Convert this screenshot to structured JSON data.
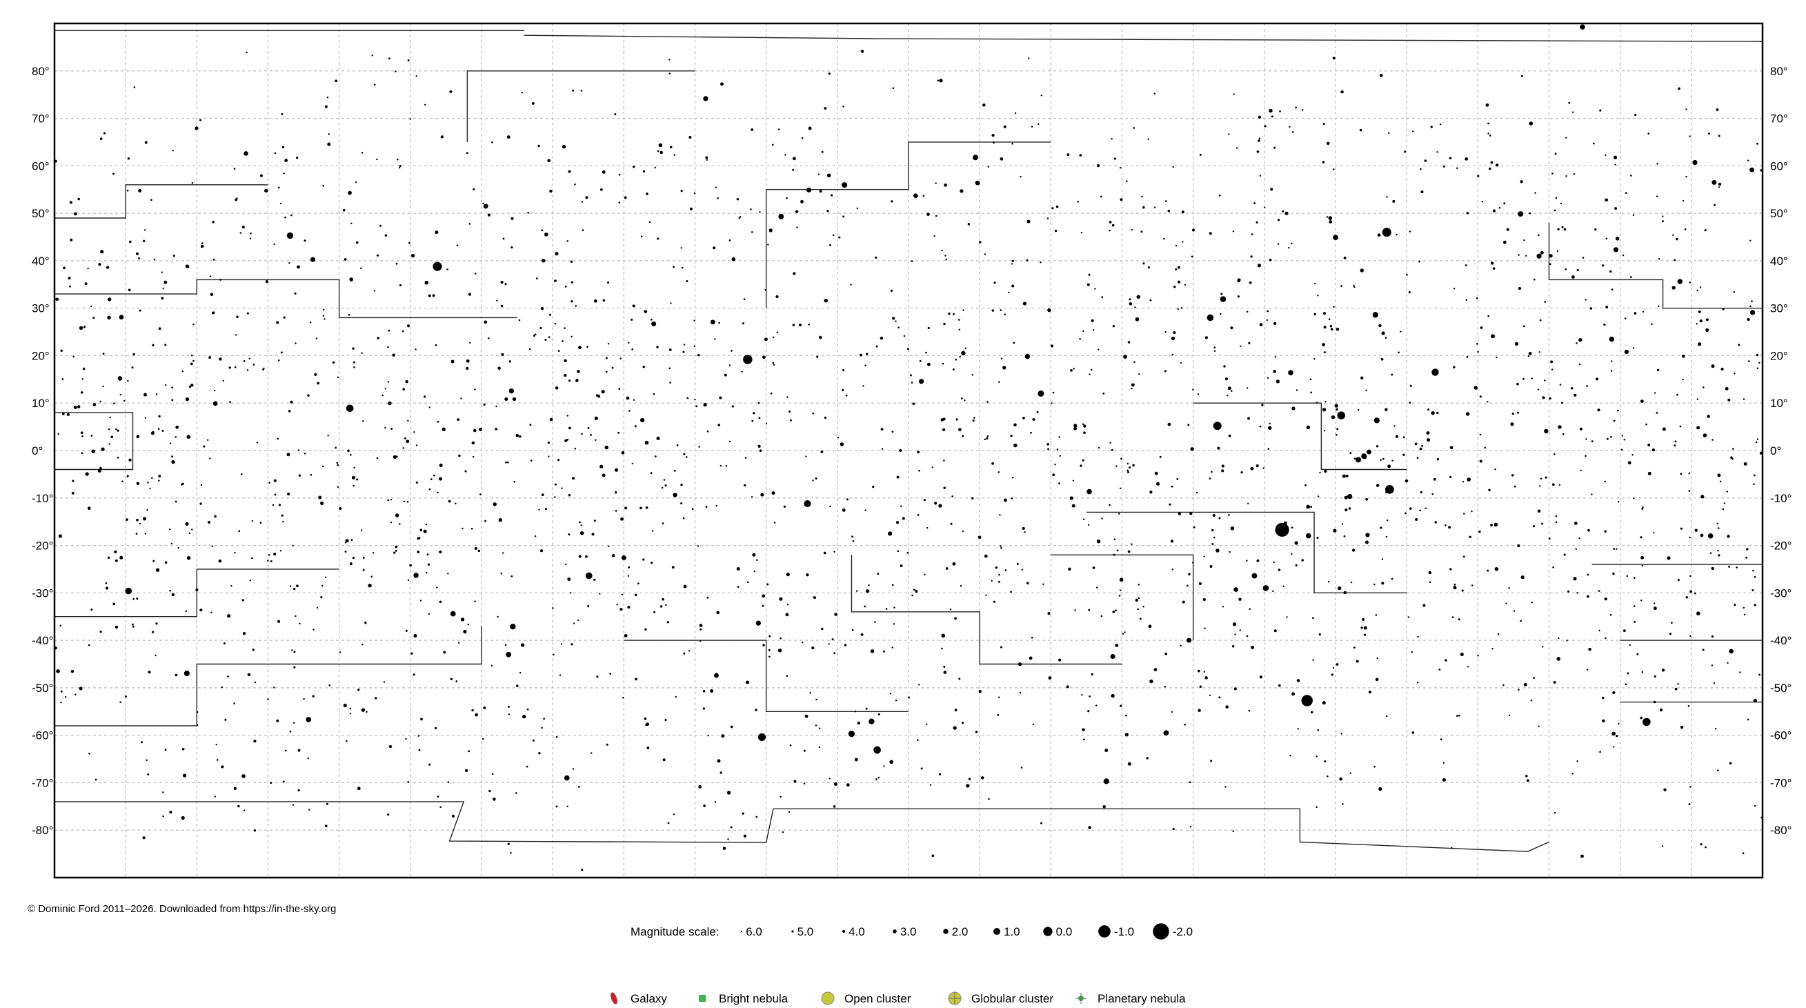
{
  "copyright": "© Dominic Ford 2011–2026. Downloaded from https://in-the-sky.org",
  "map": {
    "projection": "equirectangular",
    "ra_range_hours": [
      24,
      0
    ],
    "dec_range_deg": [
      -90,
      90
    ],
    "grid": true,
    "ra_grid_step_hours": 1,
    "dec_grid_step_deg": 10,
    "dec_labels": [
      "80°",
      "70°",
      "60°",
      "50°",
      "40°",
      "30°",
      "20°",
      "10°",
      "0°",
      "-10°",
      "-20°",
      "-30°",
      "-40°",
      "-50°",
      "-60°",
      "-70°",
      "-80°"
    ],
    "dec_label_values": [
      80,
      70,
      60,
      50,
      40,
      30,
      20,
      10,
      0,
      -10,
      -20,
      -30,
      -40,
      -50,
      -60,
      -70,
      -80
    ],
    "colors": {
      "star": "#000000",
      "grid": "#bbbbbb",
      "boundary": "#222222",
      "galaxy": "#c0282d",
      "bright_nebula": "#3cb44b",
      "cluster": "#c8c83c",
      "planetary_nebula": "#3cb44b"
    },
    "bright_stars": [
      [
        6.75,
        -16.7,
        -1.46
      ],
      [
        6.4,
        -52.7,
        -0.74
      ],
      [
        14.26,
        19.2,
        -0.05
      ],
      [
        18.62,
        38.8,
        0.03
      ],
      [
        5.28,
        46.0,
        0.08
      ],
      [
        5.24,
        -8.2,
        0.13
      ],
      [
        7.66,
        5.2,
        0.34
      ],
      [
        5.92,
        7.4,
        0.5
      ],
      [
        1.63,
        -57.2,
        0.46
      ],
      [
        14.06,
        -60.4,
        0.61
      ],
      [
        19.85,
        8.9,
        0.77
      ],
      [
        12.44,
        -63.1,
        0.77
      ],
      [
        4.6,
        16.5,
        0.85
      ],
      [
        16.49,
        -26.4,
        1.06
      ],
      [
        13.42,
        -11.2,
        0.97
      ],
      [
        7.76,
        28.0,
        1.14
      ],
      [
        22.96,
        -29.6,
        1.16
      ],
      [
        20.69,
        45.3,
        1.25
      ],
      [
        12.8,
        -59.7,
        1.25
      ],
      [
        10.14,
        12.0,
        1.35
      ],
      [
        6.98,
        -29.0,
        1.5
      ],
      [
        7.58,
        31.9,
        1.58
      ],
      [
        17.56,
        -37.1,
        1.62
      ],
      [
        12.52,
        -57.1,
        1.63
      ],
      [
        5.42,
        6.35,
        1.64
      ],
      [
        5.44,
        28.6,
        1.65
      ],
      [
        9.22,
        -69.7,
        1.68
      ],
      [
        5.6,
        -1.2,
        1.69
      ],
      [
        22.14,
        -46.96,
        1.74
      ],
      [
        5.68,
        -1.94,
        1.77
      ],
      [
        12.9,
        55.96,
        1.77
      ],
      [
        11.06,
        61.75,
        1.79
      ],
      [
        3.4,
        49.86,
        1.79
      ],
      [
        7.14,
        -26.4,
        1.84
      ],
      [
        17.62,
        -43.0,
        1.86
      ],
      [
        18.4,
        -34.4,
        1.85
      ],
      [
        8.38,
        -59.5,
        1.86
      ],
      [
        13.79,
        49.3,
        1.86
      ],
      [
        6.0,
        44.9,
        1.9
      ],
      [
        16.8,
        -69.0,
        1.91
      ],
      [
        6.63,
        16.4,
        1.92
      ],
      [
        20.43,
        -56.7,
        1.94
      ],
      [
        2.53,
        89.26,
        1.98
      ],
      [
        6.38,
        -17.96,
        1.98
      ],
      [
        9.46,
        -8.66,
        1.98
      ],
      [
        2.12,
        23.46,
        2.0
      ],
      [
        10.33,
        19.84,
        2.0
      ],
      [
        0.73,
        -17.99,
        2.04
      ],
      [
        18.92,
        -26.3,
        2.05
      ],
      [
        14.11,
        -36.37,
        2.06
      ],
      [
        0.14,
        29.09,
        2.06
      ],
      [
        1.16,
        35.62,
        2.06
      ],
      [
        5.8,
        -9.67,
        2.07
      ],
      [
        14.85,
        74.16,
        2.08
      ],
      [
        17.58,
        12.56,
        2.08
      ],
      [
        3.14,
        40.96,
        2.1
      ],
      [
        2.06,
        42.33,
        2.1
      ],
      [
        11.82,
        14.57,
        2.14
      ],
      [
        0.95,
        60.7,
        2.15
      ],
      [
        8.06,
        -40.0,
        2.25
      ],
      [
        15.58,
        26.7,
        2.23
      ],
      [
        13.4,
        54.9,
        2.23
      ],
      [
        20.37,
        40.26,
        2.23
      ],
      [
        0.68,
        56.5,
        2.24
      ],
      [
        17.94,
        51.49,
        2.24
      ],
      [
        0.15,
        59.15,
        2.28
      ],
      [
        14.7,
        -47.4,
        2.3
      ],
      [
        16.0,
        -22.6,
        2.3
      ],
      [
        21.74,
        9.9,
        2.39
      ],
      [
        23.06,
        28.1,
        2.42
      ],
      [
        23.08,
        15.2,
        2.48
      ],
      [
        3.04,
        4.09,
        2.54
      ],
      [
        15.28,
        -9.38,
        2.61
      ],
      [
        0.44,
        -42.3,
        2.4
      ],
      [
        21.31,
        62.6,
        2.45
      ],
      [
        11.03,
        56.4,
        2.37
      ],
      [
        11.9,
        53.7,
        2.44
      ],
      [
        14.75,
        27.07,
        2.37
      ],
      [
        5.53,
        -0.3,
        2.23
      ],
      [
        7.4,
        -29.3,
        2.45
      ],
      [
        9.13,
        -43.4,
        2.2
      ],
      [
        12.26,
        -17.5,
        2.59
      ],
      [
        15.74,
        6.4,
        2.63
      ],
      [
        1.91,
        20.8,
        2.64
      ],
      [
        11.23,
        20.5,
        2.56
      ],
      [
        5.55,
        -17.8,
        2.58
      ],
      [
        3.79,
        24.1,
        2.87
      ]
    ],
    "boundaries": [
      [
        [
          24,
          88.5
        ],
        [
          17.4,
          88.5
        ]
      ],
      [
        [
          17.4,
          87.5
        ],
        [
          12.5,
          86.8
        ],
        [
          0,
          86.2
        ]
      ],
      [
        [
          24,
          -74
        ],
        [
          18.25,
          -74
        ],
        [
          18.45,
          -82.3
        ],
        [
          14.0,
          -82.6
        ],
        [
          13.9,
          -75.5
        ]
      ],
      [
        [
          13.9,
          -75.5
        ],
        [
          6.5,
          -75.5
        ],
        [
          6.5,
          -82.5
        ],
        [
          3.3,
          -84.5
        ],
        [
          3.0,
          -82.5
        ]
      ],
      [
        [
          24,
          -58
        ],
        [
          22.0,
          -58
        ],
        [
          22.0,
          -45
        ],
        [
          18.0,
          -45
        ],
        [
          18.0,
          -37
        ]
      ],
      [
        [
          24,
          -35
        ],
        [
          22.0,
          -35
        ],
        [
          22.0,
          -25
        ],
        [
          20.0,
          -25
        ]
      ],
      [
        [
          24,
          -4
        ],
        [
          22.9,
          -4
        ],
        [
          22.9,
          8
        ],
        [
          24,
          8
        ]
      ],
      [
        [
          24,
          33
        ],
        [
          22.0,
          33
        ],
        [
          22.0,
          36
        ],
        [
          20.0,
          36
        ],
        [
          20.0,
          28
        ],
        [
          17.5,
          28
        ]
      ],
      [
        [
          24,
          49
        ],
        [
          23.0,
          49
        ],
        [
          23.0,
          56
        ],
        [
          21.0,
          56
        ]
      ],
      [
        [
          12.8,
          -22
        ],
        [
          12.8,
          -34
        ],
        [
          11.0,
          -34
        ],
        [
          11.0,
          -45
        ],
        [
          9.0,
          -45
        ]
      ],
      [
        [
          9.5,
          -13
        ],
        [
          6.3,
          -13
        ],
        [
          6.3,
          -30
        ],
        [
          5.0,
          -30
        ]
      ],
      [
        [
          8.0,
          10
        ],
        [
          6.2,
          10
        ],
        [
          6.2,
          -4
        ],
        [
          5.0,
          -4
        ]
      ],
      [
        [
          3.0,
          48
        ],
        [
          3.0,
          36
        ],
        [
          1.4,
          36
        ],
        [
          1.4,
          30
        ],
        [
          0,
          30
        ]
      ],
      [
        [
          2.0,
          -40
        ],
        [
          0,
          -40
        ]
      ],
      [
        [
          2.0,
          -53
        ],
        [
          0,
          -53
        ]
      ],
      [
        [
          2.4,
          -24
        ],
        [
          0,
          -24
        ]
      ],
      [
        [
          14.0,
          30
        ],
        [
          14.0,
          55
        ],
        [
          12.0,
          55
        ],
        [
          12.0,
          65
        ],
        [
          10.0,
          65
        ]
      ],
      [
        [
          18.2,
          65
        ],
        [
          18.2,
          80
        ],
        [
          15.0,
          80
        ]
      ],
      [
        [
          10.0,
          -22
        ],
        [
          8.0,
          -22
        ],
        [
          8.0,
          -40
        ]
      ],
      [
        [
          16.0,
          -40
        ],
        [
          14.0,
          -40
        ],
        [
          14.0,
          -55
        ],
        [
          12.0,
          -55
        ]
      ]
    ],
    "faint_star_count": 2200
  },
  "legend": {
    "magnitude_title": "Magnitude scale:",
    "magnitudes": [
      {
        "mag": 6.0,
        "label": "6.0"
      },
      {
        "mag": 5.0,
        "label": "5.0"
      },
      {
        "mag": 4.0,
        "label": "4.0"
      },
      {
        "mag": 3.0,
        "label": "3.0"
      },
      {
        "mag": 2.0,
        "label": "2.0"
      },
      {
        "mag": 1.0,
        "label": "1.0"
      },
      {
        "mag": 0.0,
        "label": "0.0"
      },
      {
        "mag": -1.0,
        "label": "-1.0"
      },
      {
        "mag": -2.0,
        "label": "-2.0"
      }
    ],
    "objects": [
      {
        "icon": "galaxy-icon",
        "label": "Galaxy"
      },
      {
        "icon": "bright-nebula-icon",
        "label": "Bright nebula"
      },
      {
        "icon": "open-cluster-icon",
        "label": "Open cluster"
      },
      {
        "icon": "globular-cluster-icon",
        "label": "Globular cluster"
      },
      {
        "icon": "planetary-nebula-icon",
        "label": "Planetary nebula"
      }
    ]
  }
}
